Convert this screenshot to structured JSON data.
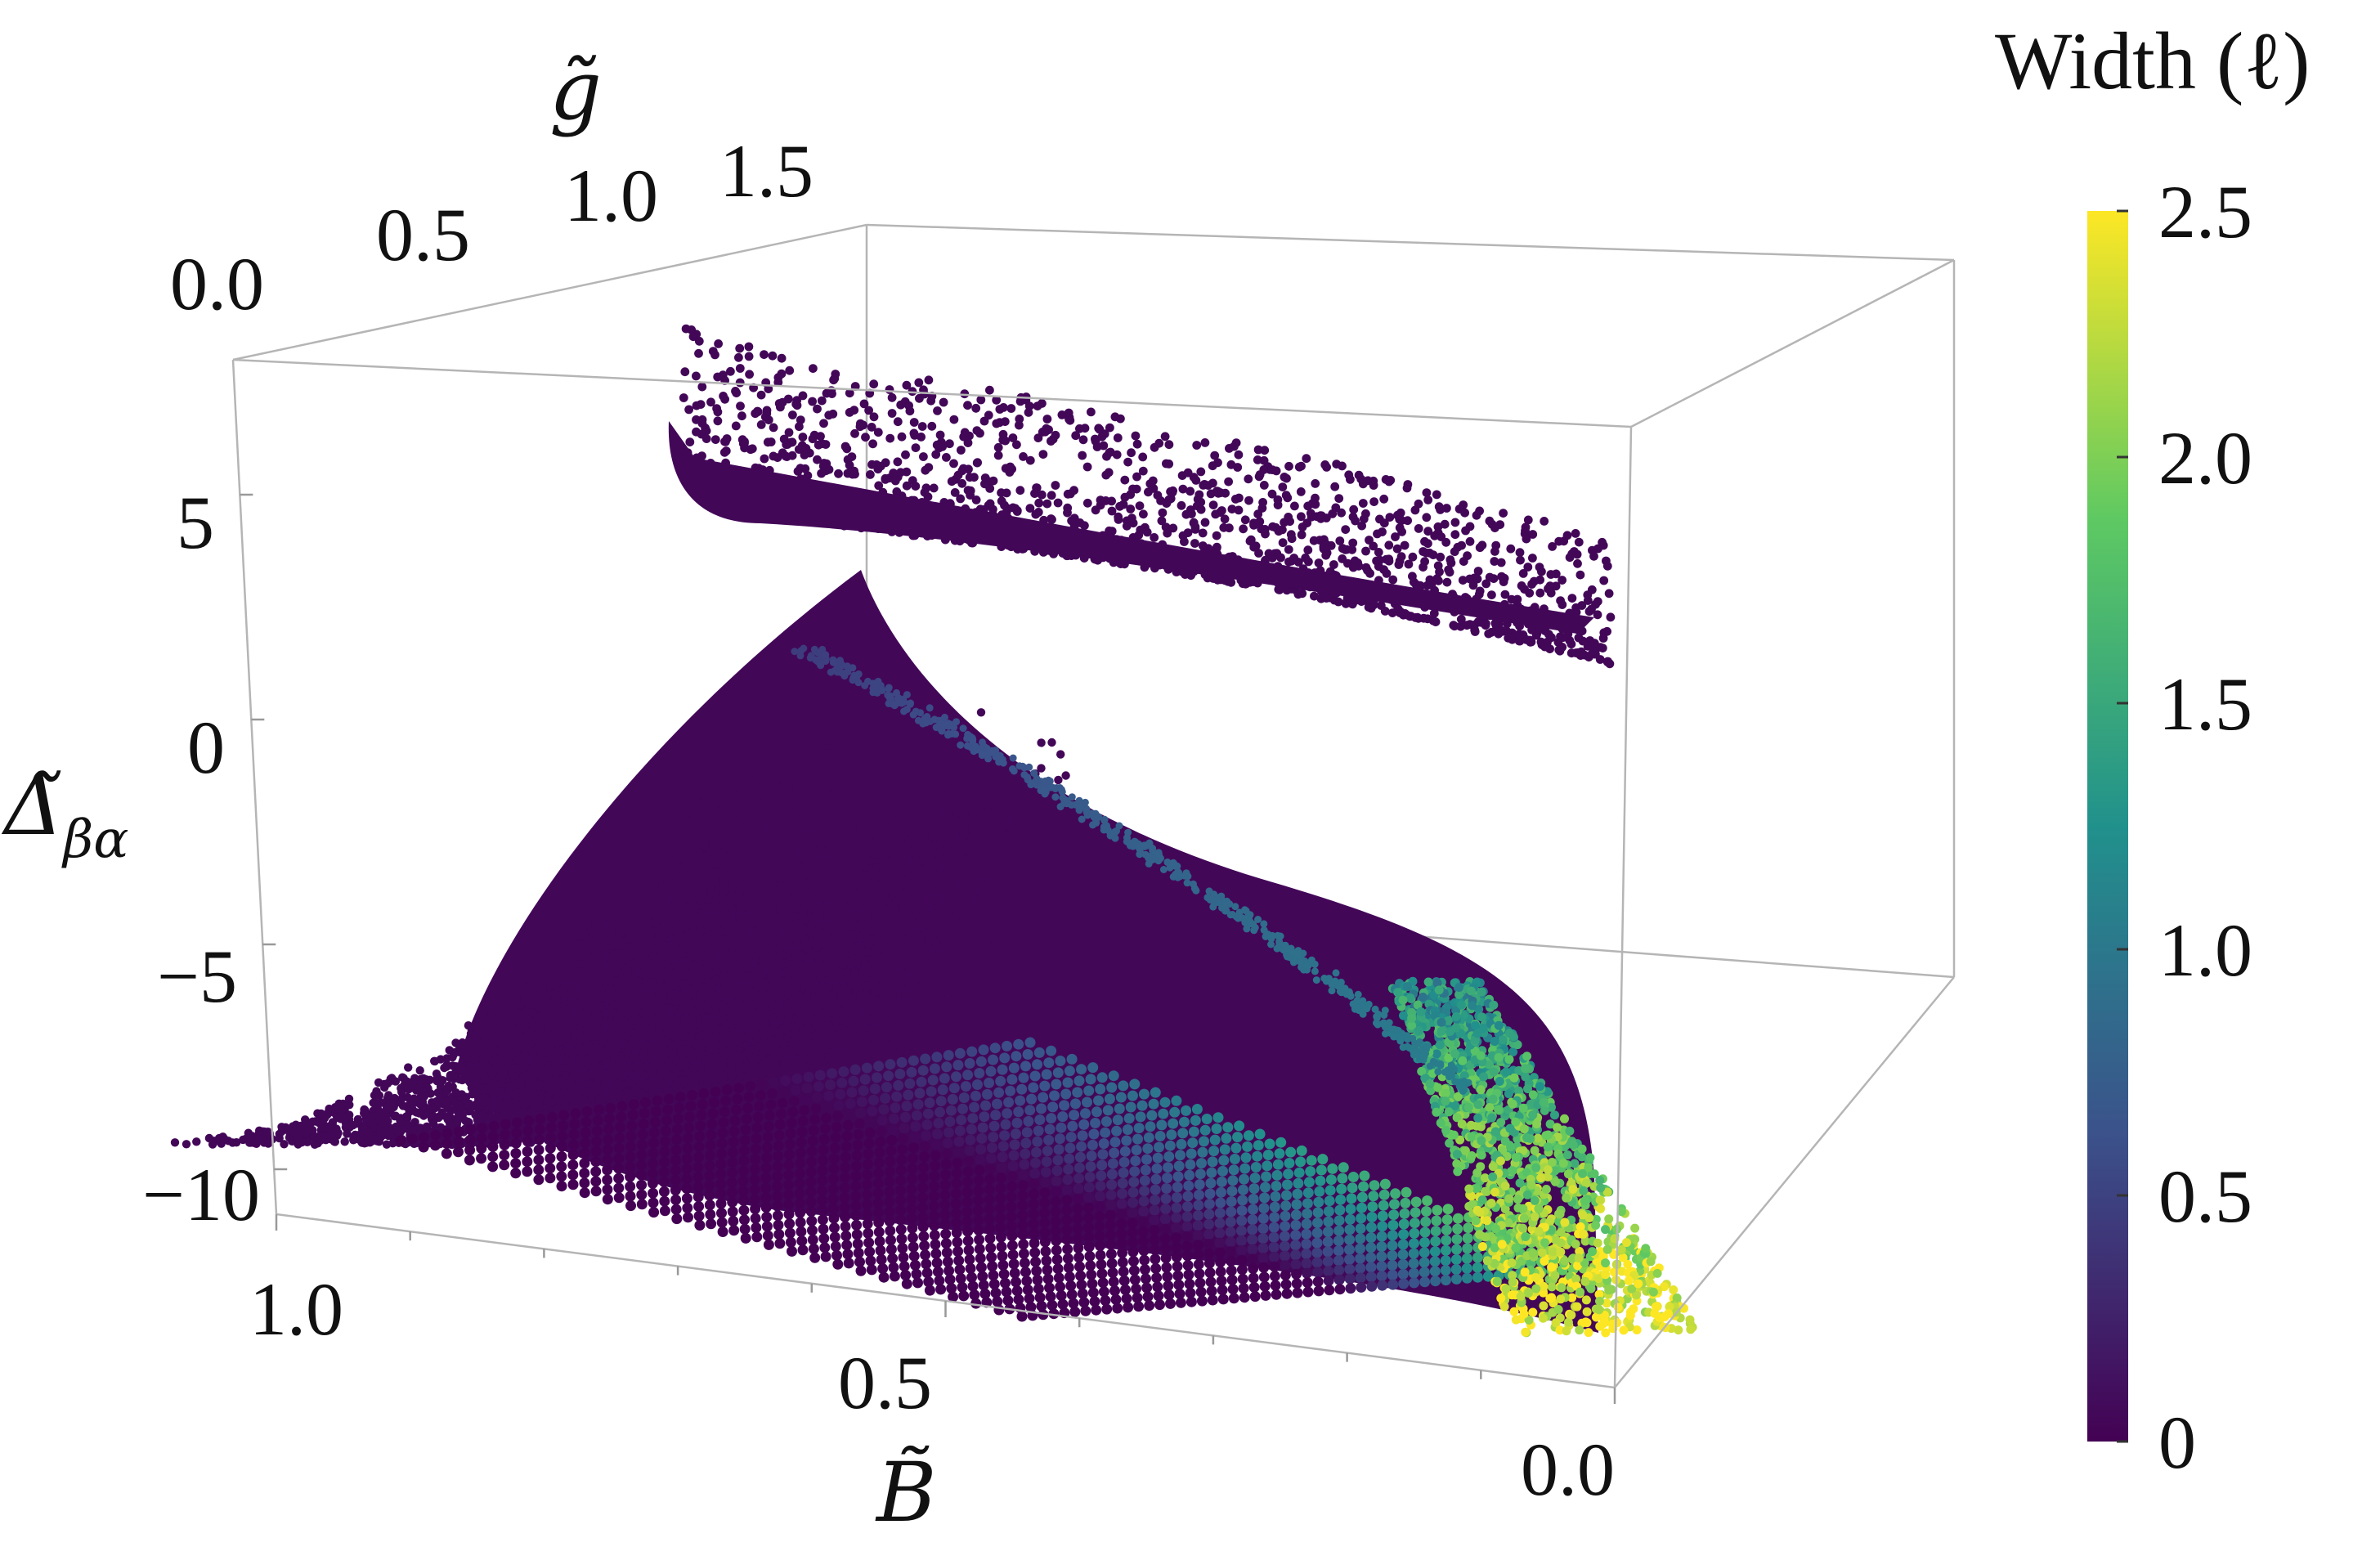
{
  "chart_data": {
    "type": "scatter",
    "projection": "3d",
    "title": "",
    "axes": {
      "x": {
        "label": "B̃",
        "range": [
          0.0,
          1.0
        ],
        "ticks": [
          "1.0",
          "0.5",
          "0.0"
        ]
      },
      "y": {
        "label": "g̃",
        "range": [
          0.0,
          1.6
        ],
        "ticks": [
          "0.0",
          "0.5",
          "1.0",
          "1.5"
        ]
      },
      "z": {
        "label": "Δ̃",
        "label_subscript": "βα",
        "range": [
          -11,
          8
        ],
        "ticks": [
          "5",
          "0",
          "−5",
          "−10"
        ],
        "tick_values": [
          5,
          0,
          -5,
          -10
        ]
      }
    },
    "colorbar": {
      "title": "Width (ℓ)",
      "range": [
        0,
        2.5
      ],
      "ticks": [
        "2.5",
        "2.0",
        "1.5",
        "1.0",
        "0.5",
        "0"
      ],
      "tick_values": [
        2.5,
        2.0,
        1.5,
        1.0,
        0.5,
        0
      ],
      "colormap": [
        "#440154",
        "#3b528b",
        "#21918c",
        "#5ec962",
        "#fde725"
      ]
    },
    "series": [
      {
        "description_of_points": "upper branch",
        "width_range": [
          0,
          0.05
        ],
        "curve_B_g_delta": [
          [
            1.0,
            1.0,
            6.0
          ],
          [
            0.7,
            1.1,
            5.0
          ],
          [
            0.4,
            1.25,
            4.2
          ],
          [
            0.1,
            1.45,
            3.6
          ],
          [
            0.0,
            1.55,
            3.5
          ]
        ]
      },
      {
        "description_of_points": "lower branch",
        "width_range": [
          0,
          2.5
        ],
        "edge_B_g_delta": [
          [
            1.0,
            1.1,
            4.7
          ],
          [
            0.6,
            1.1,
            0.0
          ],
          [
            0.2,
            1.2,
            -5.0
          ],
          [
            0.0,
            1.3,
            -8.5
          ]
        ],
        "bright_region": {
          "B_range": [
            0.0,
            0.15
          ],
          "delta_range": [
            -11,
            -6
          ],
          "width_max": 2.5
        }
      }
    ],
    "grid": false
  }
}
